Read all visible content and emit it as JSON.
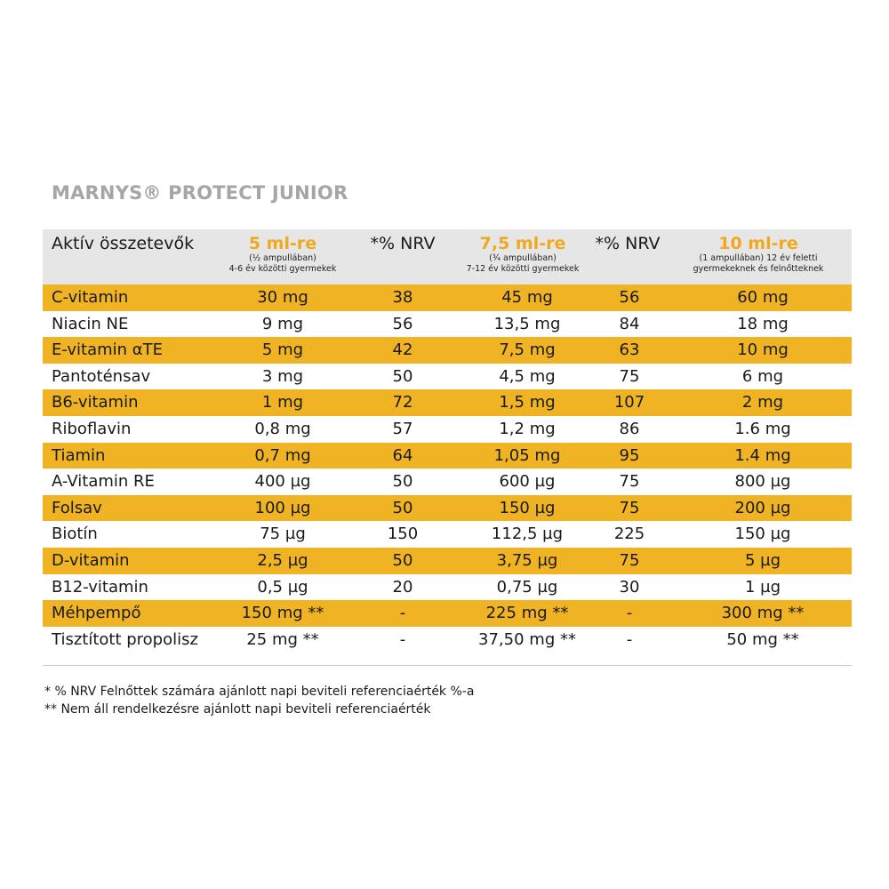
{
  "title": "MARNYS® PROTECT JUNIOR",
  "header": {
    "name": "Aktív összetevők",
    "dose1": {
      "amount": "5 ml-re",
      "sub1": "(½ ampullában)",
      "sub2": "4-6 év közötti gyermekek"
    },
    "nrv1": "*% NRV",
    "dose2": {
      "amount": "7,5 ml-re",
      "sub1": "(¾ ampullában)",
      "sub2": "7-12 év közötti gyermekek"
    },
    "nrv2": "*% NRV",
    "dose3": {
      "amount": "10 ml-re",
      "sub1": "(1 ampullában) 12 év feletti",
      "sub2": "gyermekeknek és felnőtteknek"
    }
  },
  "rows": [
    {
      "name": "C-vitamin",
      "d1": "30 mg",
      "n1": "38",
      "d2": "45 mg",
      "n2": "56",
      "d3": "60 mg"
    },
    {
      "name": "Niacin NE",
      "d1": "9 mg",
      "n1": "56",
      "d2": "13,5 mg",
      "n2": "84",
      "d3": "18 mg"
    },
    {
      "name": "E-vitamin αTE",
      "d1": "5 mg",
      "n1": "42",
      "d2": "7,5 mg",
      "n2": "63",
      "d3": "10 mg"
    },
    {
      "name": "Pantoténsav",
      "d1": "3 mg",
      "n1": "50",
      "d2": "4,5 mg",
      "n2": "75",
      "d3": "6 mg"
    },
    {
      "name": "B6-vitamin",
      "d1": "1 mg",
      "n1": "72",
      "d2": "1,5 mg",
      "n2": "107",
      "d3": "2 mg"
    },
    {
      "name": "Riboflavin",
      "d1": "0,8 mg",
      "n1": "57",
      "d2": "1,2 mg",
      "n2": "86",
      "d3": "1.6 mg"
    },
    {
      "name": "Tiamin",
      "d1": "0,7 mg",
      "n1": "64",
      "d2": "1,05 mg",
      "n2": "95",
      "d3": "1.4 mg"
    },
    {
      "name": "A-Vitamin RE",
      "d1": "400 µg",
      "n1": "50",
      "d2": "600 µg",
      "n2": "75",
      "d3": "800 µg"
    },
    {
      "name": "Folsav",
      "d1": "100 µg",
      "n1": "50",
      "d2": "150 µg",
      "n2": "75",
      "d3": "200 µg"
    },
    {
      "name": "Biotín",
      "d1": "75 µg",
      "n1": "150",
      "d2": "112,5 µg",
      "n2": "225",
      "d3": "150 µg"
    },
    {
      "name": "D-vitamin",
      "d1": "2,5 µg",
      "n1": "50",
      "d2": "3,75 µg",
      "n2": "75",
      "d3": "5 µg"
    },
    {
      "name": "B12-vitamin",
      "d1": "0,5 µg",
      "n1": "20",
      "d2": "0,75 µg",
      "n2": "30",
      "d3": "1 µg"
    },
    {
      "name": "Méhpempő",
      "d1": "150 mg **",
      "n1": "-",
      "d2": "225 mg **",
      "n2": "-",
      "d3": "300 mg **"
    },
    {
      "name": "Tisztított propolisz",
      "d1": "25 mg **",
      "n1": "-",
      "d2": "37,50 mg **",
      "n2": "-",
      "d3": "50 mg **"
    }
  ],
  "footnotes": [
    "* % NRV Felnőttek számára ajánlott napi beviteli referenciaérték %-a",
    "** Nem áll rendelkezésre ajánlott napi beviteli referenciaérték"
  ],
  "colors": {
    "accent": "#f0b323",
    "header_bg": "#e6e6e6",
    "title": "#a6a6a6"
  }
}
